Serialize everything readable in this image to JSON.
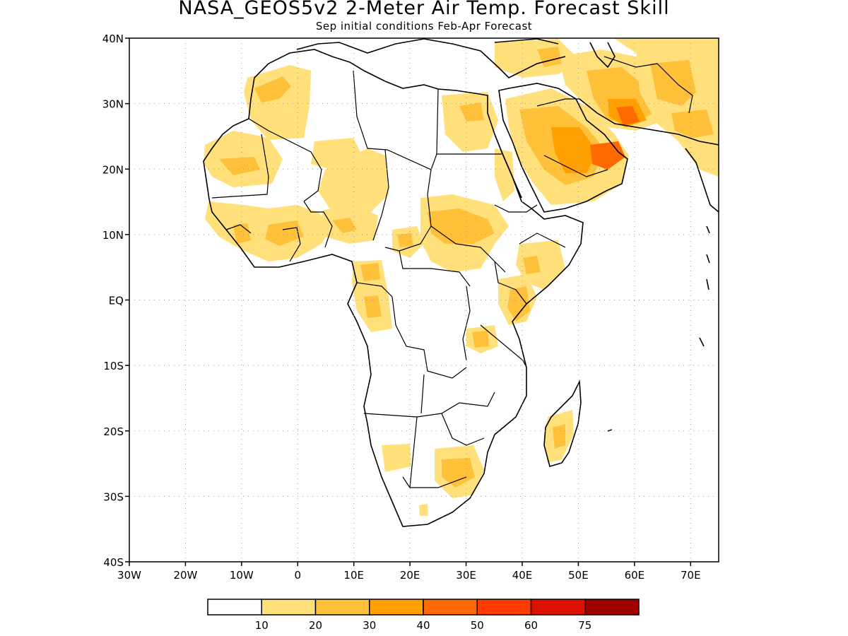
{
  "title": "NASA_GEOS5v2 2-Meter Air Temp. Forecast Skill",
  "subtitle": "Sep initial conditions  Feb-Apr Forecast",
  "lat_ticks": [
    "40N",
    "30N",
    "20N",
    "10N",
    "EQ",
    "10S",
    "20S",
    "30S",
    "40S"
  ],
  "lon_ticks": [
    "30W",
    "20W",
    "10W",
    "0",
    "10E",
    "20E",
    "30E",
    "40E",
    "50E",
    "60E",
    "70E"
  ],
  "extent": {
    "lon_min": -30,
    "lon_max": 75,
    "lat_min": -40,
    "lat_max": 40
  },
  "colorbar": {
    "labels": [
      "10",
      "20",
      "30",
      "40",
      "50",
      "60",
      "75"
    ],
    "colors": [
      "#ffffff",
      "#ffe07a",
      "#ffc03a",
      "#ffa000",
      "#ff6a00",
      "#ff3c00",
      "#dd1100",
      "#a00000"
    ]
  }
}
